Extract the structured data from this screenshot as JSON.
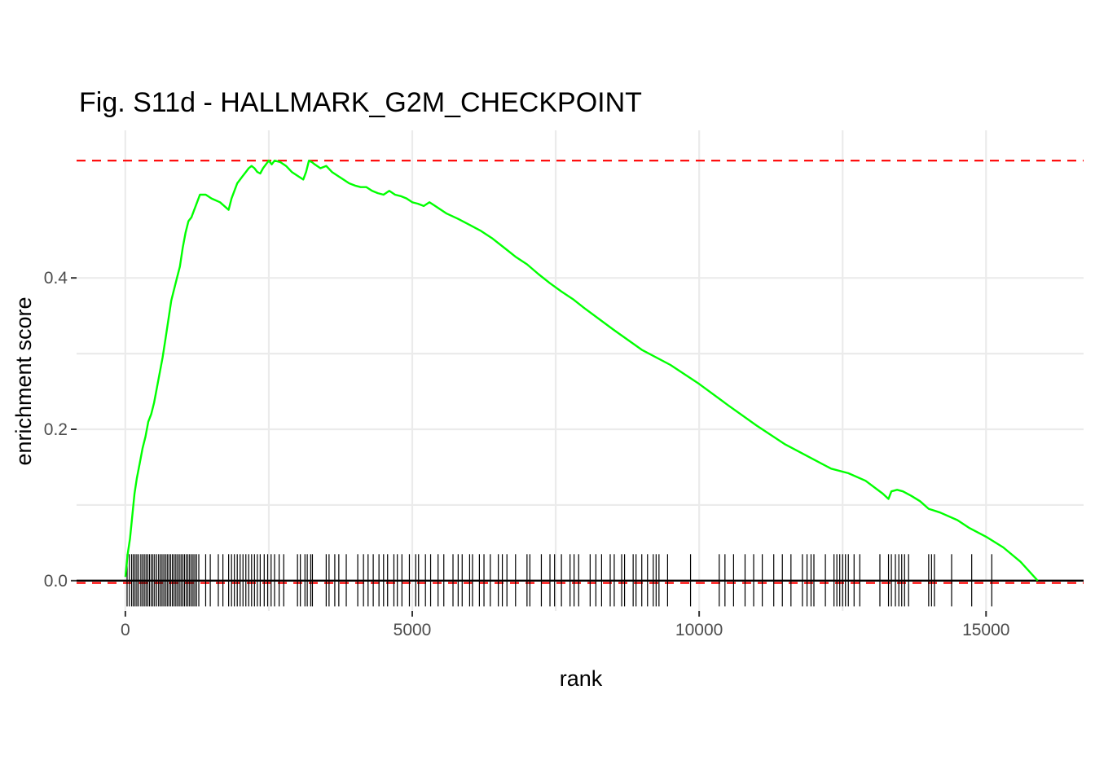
{
  "chart_data": {
    "type": "line",
    "title": "Fig. S11d - HALLMARK_G2M_CHECKPOINT",
    "xlabel": "rank",
    "ylabel": "enrichment score",
    "xlim": [
      -850,
      16700
    ],
    "ylim": [
      -0.04,
      0.595
    ],
    "x_ticks": [
      0,
      5000,
      10000,
      15000
    ],
    "x_tick_labels": [
      "0",
      "5000",
      "10000",
      "15000"
    ],
    "y_ticks": [
      0.0,
      0.2,
      0.4
    ],
    "y_tick_labels": [
      "0.0",
      "0.2",
      "0.4"
    ],
    "grid": true,
    "legend": "none",
    "max_es": 0.555,
    "min_es": -0.003,
    "reference_lines": [
      {
        "y": 0.555,
        "style": "dashed",
        "color": "#ff0000"
      },
      {
        "y": -0.003,
        "style": "dashed",
        "color": "#ff0000"
      },
      {
        "y": 0.0,
        "style": "solid",
        "color": "#000000"
      }
    ],
    "series": [
      {
        "color": "#00ff00",
        "x": [
          0,
          40,
          80,
          120,
          160,
          200,
          250,
          300,
          350,
          400,
          450,
          500,
          550,
          600,
          650,
          700,
          750,
          800,
          850,
          900,
          950,
          1000,
          1050,
          1100,
          1150,
          1200,
          1250,
          1300,
          1350,
          1400,
          1500,
          1650,
          1800,
          1850,
          1900,
          1950,
          2000,
          2050,
          2100,
          2150,
          2200,
          2250,
          2300,
          2350,
          2400,
          2450,
          2500,
          2550,
          2600,
          2700,
          2800,
          2900,
          3000,
          3100,
          3150,
          3200,
          3250,
          3300,
          3400,
          3500,
          3600,
          3700,
          3800,
          3900,
          4000,
          4100,
          4200,
          4300,
          4400,
          4500,
          4600,
          4700,
          4800,
          4900,
          5000,
          5100,
          5200,
          5300,
          5400,
          5600,
          5800,
          6000,
          6200,
          6400,
          6600,
          6800,
          7000,
          7200,
          7400,
          7600,
          7800,
          8000,
          8500,
          9000,
          9500,
          10000,
          10500,
          11000,
          11500,
          12000,
          12300,
          12600,
          12900,
          13200,
          13300,
          13350,
          13450,
          13550,
          13700,
          13850,
          14000,
          14200,
          14500,
          14700,
          15000,
          15300,
          15600,
          15900
        ],
        "values": [
          0.005,
          0.035,
          0.055,
          0.085,
          0.115,
          0.135,
          0.155,
          0.175,
          0.19,
          0.21,
          0.22,
          0.235,
          0.255,
          0.275,
          0.295,
          0.32,
          0.345,
          0.37,
          0.385,
          0.4,
          0.415,
          0.44,
          0.46,
          0.475,
          0.48,
          0.49,
          0.5,
          0.51,
          0.51,
          0.51,
          0.505,
          0.5,
          0.49,
          0.505,
          0.515,
          0.525,
          0.53,
          0.535,
          0.54,
          0.545,
          0.548,
          0.545,
          0.54,
          0.538,
          0.545,
          0.55,
          0.555,
          0.55,
          0.555,
          0.553,
          0.548,
          0.54,
          0.535,
          0.53,
          0.54,
          0.555,
          0.553,
          0.55,
          0.545,
          0.548,
          0.54,
          0.535,
          0.53,
          0.525,
          0.522,
          0.52,
          0.52,
          0.515,
          0.512,
          0.51,
          0.515,
          0.51,
          0.508,
          0.505,
          0.5,
          0.498,
          0.495,
          0.5,
          0.495,
          0.485,
          0.478,
          0.47,
          0.462,
          0.452,
          0.44,
          0.428,
          0.418,
          0.405,
          0.393,
          0.382,
          0.372,
          0.36,
          0.332,
          0.305,
          0.285,
          0.26,
          0.232,
          0.205,
          0.18,
          0.16,
          0.148,
          0.142,
          0.132,
          0.115,
          0.108,
          0.118,
          0.12,
          0.118,
          0.112,
          0.105,
          0.095,
          0.09,
          0.08,
          0.07,
          0.058,
          0.044,
          0.025,
          0.0
        ]
      }
    ],
    "hit_positions": [
      30,
      70,
      110,
      140,
      170,
      200,
      230,
      270,
      300,
      330,
      360,
      390,
      420,
      450,
      480,
      510,
      545,
      580,
      610,
      640,
      670,
      700,
      730,
      760,
      790,
      820,
      850,
      880,
      910,
      940,
      970,
      1000,
      1030,
      1060,
      1090,
      1120,
      1150,
      1180,
      1210,
      1240,
      1280,
      1400,
      1480,
      1620,
      1700,
      1800,
      1850,
      1900,
      1950,
      2000,
      2050,
      2100,
      2150,
      2200,
      2250,
      2300,
      2350,
      2420,
      2480,
      2540,
      2600,
      2680,
      2760,
      3000,
      3050,
      3130,
      3170,
      3230,
      3260,
      3500,
      3550,
      3650,
      3720,
      3850,
      4050,
      4150,
      4230,
      4320,
      4420,
      4500,
      4570,
      4680,
      4740,
      4820,
      4950,
      5060,
      5110,
      5230,
      5320,
      5450,
      5550,
      5710,
      5800,
      5870,
      6000,
      6050,
      6170,
      6250,
      6360,
      6500,
      6570,
      6650,
      6800,
      7000,
      7050,
      7250,
      7400,
      7480,
      7600,
      7750,
      7820,
      7900,
      8100,
      8200,
      8300,
      8450,
      8520,
      8650,
      8700,
      8850,
      8900,
      9000,
      9100,
      9200,
      9250,
      9300,
      9450,
      9850,
      10350,
      10450,
      10600,
      10800,
      10950,
      11100,
      11300,
      11450,
      11600,
      11800,
      11880,
      11950,
      12000,
      12200,
      12350,
      12400,
      12450,
      12500,
      12550,
      12600,
      12700,
      12800,
      13150,
      13300,
      13350,
      13420,
      13480,
      13530,
      13580,
      13650,
      14000,
      14050,
      14100,
      14400,
      14750,
      15100
    ]
  }
}
